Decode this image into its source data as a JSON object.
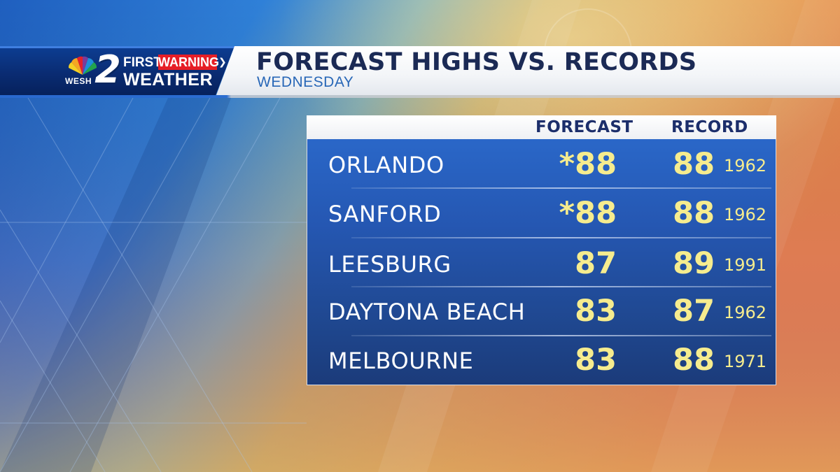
{
  "branding": {
    "station_call": "WESH",
    "channel_number": "2",
    "first_text": "FIRST",
    "warning_text": "WARNING",
    "weather_text": "WEATHER",
    "warning_color": "#e61e26",
    "icons": [
      "peacock-logo-icon",
      "chevron-right-icon"
    ]
  },
  "header": {
    "title": "FORECAST HIGHS VS. RECORDS",
    "subtitle": "WEDNESDAY",
    "title_color": "#1b2a55",
    "subtitle_color": "#2867b7"
  },
  "table": {
    "columns": {
      "forecast": "FORECAST",
      "record": "RECORD"
    },
    "value_color": "#f6ec8e",
    "rows": [
      {
        "city": "ORLANDO",
        "forecast": "*88",
        "record": "88",
        "year": "1962"
      },
      {
        "city": "SANFORD",
        "forecast": "*88",
        "record": "88",
        "year": "1962"
      },
      {
        "city": "LEESBURG",
        "forecast": "87",
        "record": "89",
        "year": "1991"
      },
      {
        "city": "DAYTONA BEACH",
        "forecast": "83",
        "record": "87",
        "year": "1962"
      },
      {
        "city": "MELBOURNE",
        "forecast": "83",
        "record": "88",
        "year": "1971"
      }
    ]
  }
}
